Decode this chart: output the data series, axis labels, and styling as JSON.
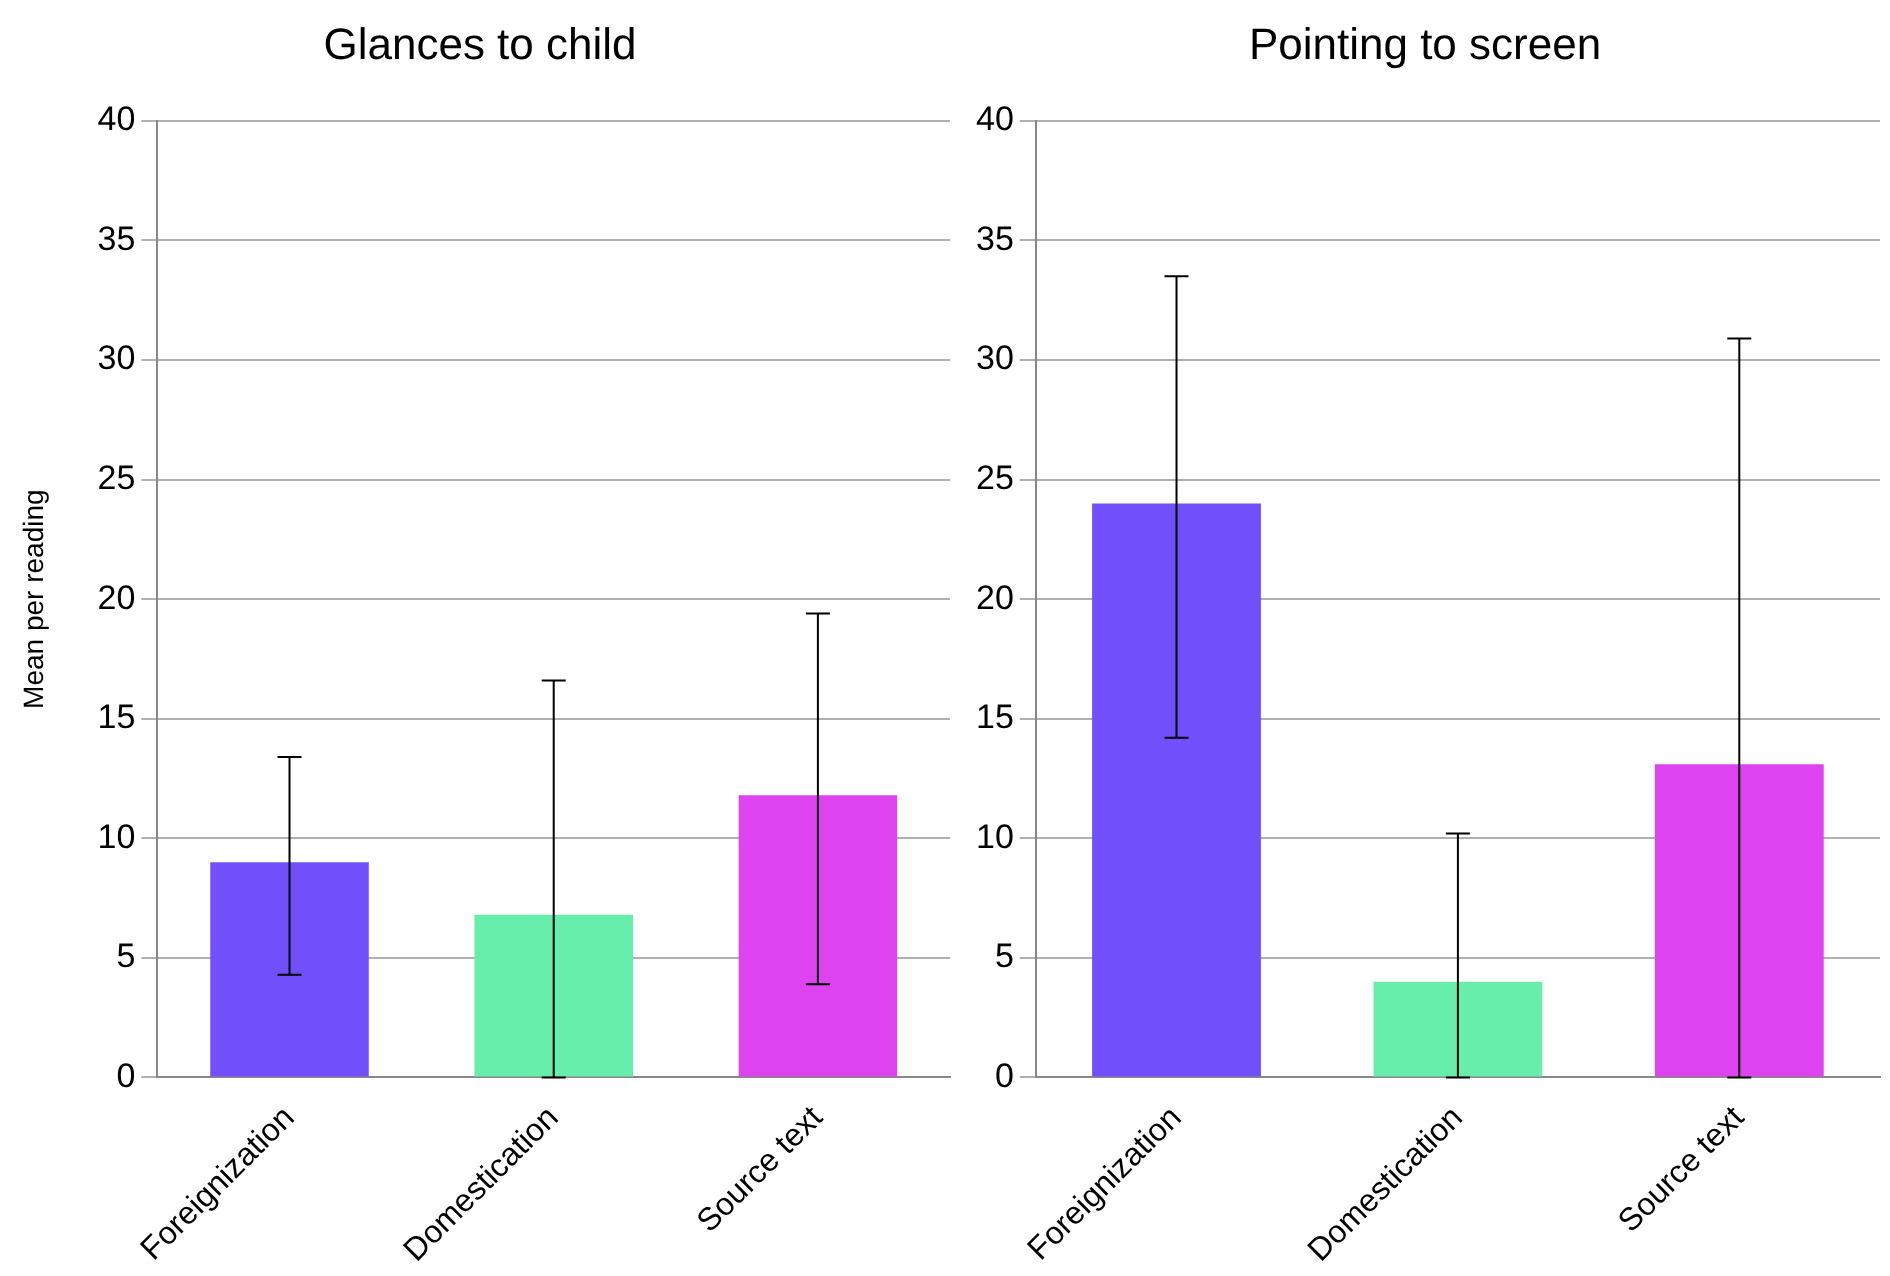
{
  "chart_data": [
    {
      "type": "bar",
      "title": "Glances to child",
      "ylabel": "Mean per reading",
      "categories": [
        "Foreignization",
        "Domestication",
        "Source text"
      ],
      "values": [
        9,
        6.8,
        11.8
      ],
      "colors": [
        "#7150fc",
        "#66eeaa",
        "#dd44f0"
      ],
      "errors": [
        [
          4.3,
          13.4
        ],
        [
          0,
          16.6
        ],
        [
          3.9,
          19.4
        ]
      ],
      "ylim": [
        0,
        40
      ],
      "yticks": [
        0,
        5,
        10,
        15,
        20,
        25,
        30,
        35,
        40
      ],
      "grid": "y",
      "legend": false
    },
    {
      "type": "bar",
      "title": "Pointing to screen",
      "categories": [
        "Foreignization",
        "Domestication",
        "Source text"
      ],
      "values": [
        24,
        4,
        13.1
      ],
      "colors": [
        "#7150fc",
        "#66eeaa",
        "#dd44f0"
      ],
      "errors": [
        [
          14.2,
          33.5
        ],
        [
          0,
          10.2
        ],
        [
          0,
          30.9
        ]
      ],
      "ylim": [
        0,
        40
      ],
      "yticks": [
        0,
        5,
        10,
        15,
        20,
        25,
        30,
        35,
        40
      ],
      "grid": "y",
      "legend": false
    }
  ]
}
